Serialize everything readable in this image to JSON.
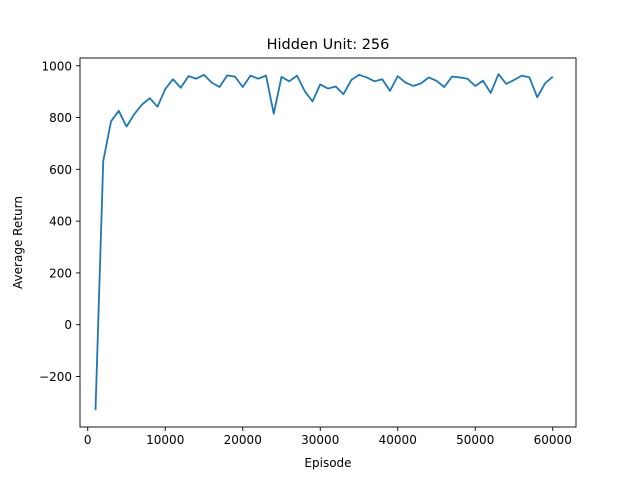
{
  "chart_data": {
    "type": "line",
    "title": "Hidden Unit: 256",
    "xlabel": "Episode",
    "ylabel": "Average Return",
    "xlim": [
      -1000,
      63000
    ],
    "ylim": [
      -395,
      1030
    ],
    "xticks": [
      0,
      10000,
      20000,
      30000,
      40000,
      50000,
      60000
    ],
    "xtick_labels": [
      "0",
      "10000",
      "20000",
      "30000",
      "40000",
      "50000",
      "60000"
    ],
    "yticks": [
      -200,
      0,
      200,
      400,
      600,
      800,
      1000
    ],
    "ytick_labels": [
      "−200",
      "0",
      "200",
      "400",
      "600",
      "800",
      "1000"
    ],
    "grid": false,
    "line_color": "#1f77b4",
    "series": [
      {
        "x": [
          1000,
          2000,
          3000,
          4000,
          5000,
          6000,
          7000,
          8000,
          9000,
          10000,
          11000,
          12000,
          13000,
          14000,
          15000,
          16000,
          17000,
          18000,
          19000,
          20000,
          21000,
          22000,
          23000,
          24000,
          25000,
          26000,
          27000,
          28000,
          29000,
          30000,
          31000,
          32000,
          33000,
          34000,
          35000,
          36000,
          37000,
          38000,
          39000,
          40000,
          41000,
          42000,
          43000,
          44000,
          45000,
          46000,
          47000,
          48000,
          49000,
          50000,
          51000,
          52000,
          53000,
          54000,
          55000,
          56000,
          57000,
          58000,
          59000,
          60000
        ],
        "values": [
          -330,
          632,
          785,
          826,
          765,
          813,
          850,
          875,
          842,
          910,
          948,
          915,
          960,
          950,
          965,
          935,
          918,
          963,
          958,
          918,
          962,
          950,
          962,
          815,
          957,
          940,
          962,
          902,
          862,
          928,
          912,
          920,
          890,
          945,
          965,
          955,
          940,
          948,
          903,
          960,
          935,
          922,
          932,
          955,
          942,
          918,
          958,
          955,
          950,
          922,
          942,
          895,
          968,
          930,
          945,
          962,
          955,
          878,
          932,
          958
        ]
      }
    ]
  }
}
